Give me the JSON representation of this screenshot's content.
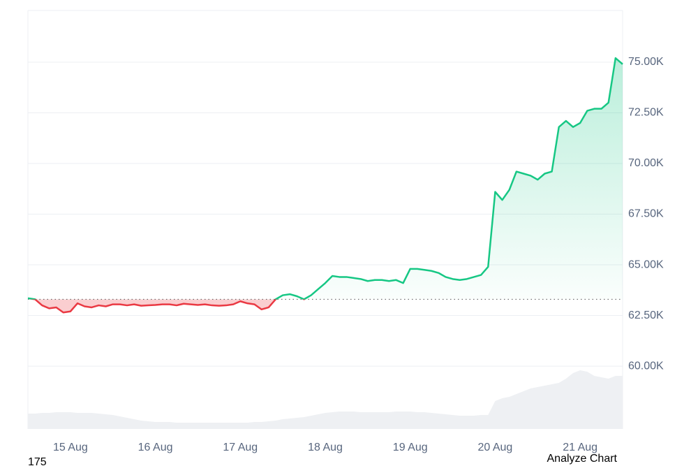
{
  "chart_data": {
    "type": "line",
    "values": [
      63350,
      63300,
      63000,
      62850,
      62900,
      62650,
      62700,
      63100,
      62950,
      62900,
      63000,
      62950,
      63050,
      63050,
      63000,
      63050,
      62980,
      63000,
      63020,
      63050,
      63050,
      63000,
      63080,
      63050,
      63020,
      63050,
      63000,
      62980,
      63000,
      63050,
      63200,
      63100,
      63050,
      62800,
      62900,
      63300,
      63500,
      63550,
      63450,
      63300,
      63500,
      63800,
      64100,
      64450,
      64400,
      64400,
      64350,
      64300,
      64200,
      64250,
      64250,
      64200,
      64250,
      64100,
      64800,
      64800,
      64750,
      64700,
      64600,
      64400,
      64300,
      64250,
      64300,
      64400,
      64500,
      64900,
      68600,
      68200,
      68700,
      69600,
      69500,
      69400,
      69200,
      69500,
      69600,
      71800,
      72100,
      71800,
      72000,
      72600,
      72700,
      72700,
      73000,
      75200,
      74900
    ],
    "volume": [
      22,
      22,
      23,
      23,
      24,
      24,
      24,
      23,
      23,
      23,
      22,
      21,
      20,
      18,
      16,
      14,
      12,
      11,
      10,
      10,
      10,
      9,
      9,
      9,
      9,
      9,
      9,
      9,
      9,
      9,
      9,
      9,
      10,
      10,
      11,
      12,
      14,
      15,
      16,
      17,
      19,
      21,
      23,
      24,
      25,
      25,
      25,
      24,
      24,
      24,
      24,
      24,
      25,
      25,
      25,
      24,
      24,
      23,
      22,
      21,
      20,
      19,
      19,
      19,
      20,
      20,
      40,
      44,
      46,
      50,
      54,
      58,
      60,
      62,
      64,
      66,
      72,
      80,
      84,
      82,
      76,
      74,
      72,
      76,
      76
    ],
    "baseline": 63300,
    "up_color": "#16c784",
    "down_color": "#ea3943",
    "volume_color": "#eef0f3",
    "xlim": [
      0,
      84
    ],
    "xticks": [
      {
        "value": 6,
        "label": "15 Aug"
      },
      {
        "value": 18,
        "label": "16 Aug"
      },
      {
        "value": 30,
        "label": "17 Aug"
      },
      {
        "value": 42,
        "label": "18 Aug"
      },
      {
        "value": 54,
        "label": "19 Aug"
      },
      {
        "value": 66,
        "label": "20 Aug"
      },
      {
        "value": 78,
        "label": "21 Aug"
      }
    ],
    "ylim": [
      56900,
      77550
    ],
    "yticks": [
      {
        "value": 60000,
        "label": "60.00K"
      },
      {
        "value": 62500,
        "label": "62.50K"
      },
      {
        "value": 65000,
        "label": "65.00K"
      },
      {
        "value": 67500,
        "label": "67.50K"
      },
      {
        "value": 70000,
        "label": "70.00K"
      },
      {
        "value": 72500,
        "label": "72.50K"
      },
      {
        "value": 75000,
        "label": "75.00K"
      }
    ],
    "y2lim": [
      0,
      100
    ],
    "grid": true,
    "footer_left": "175",
    "action": "Analyze Chart"
  }
}
